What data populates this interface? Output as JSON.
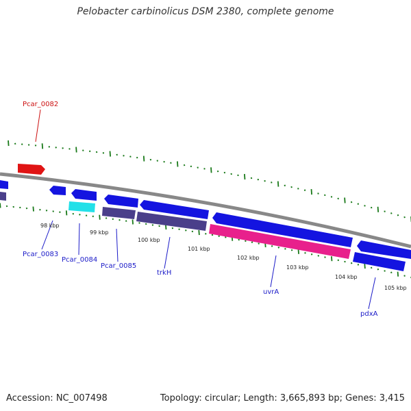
{
  "title": "Pelobacter carbinolicus DSM 2380, complete genome",
  "footer": {
    "accession": "Accession: NC_007498",
    "topology": "Topology: circular; Length: 3,665,893 bp; Genes: 3,415"
  },
  "colors": {
    "backbone": "#888888",
    "tick": "#1a7a1a",
    "gene_blue": "#1414e0",
    "gene_red": "#e01414",
    "gene_cyan": "#22e0e8",
    "gene_slate": "#4a3f8a",
    "gene_pink": "#e8208c",
    "label_blue": "#1a1ac8",
    "label_red": "#cc1111"
  },
  "scale": {
    "ticks": [
      {
        "kbp": 98,
        "label": "98 kbp"
      },
      {
        "kbp": 99,
        "label": "99 kbp"
      },
      {
        "kbp": 100,
        "label": "100 kbp"
      },
      {
        "kbp": 101,
        "label": "101 kbp"
      },
      {
        "kbp": 102,
        "label": "102 kbp"
      },
      {
        "kbp": 103,
        "label": "103 kbp"
      },
      {
        "kbp": 104,
        "label": "104 kbp"
      },
      {
        "kbp": 105,
        "label": "105 kbp"
      }
    ]
  },
  "labels": [
    {
      "text": "Pcar_0082",
      "color": "red"
    },
    {
      "text": "Pcar_0083",
      "color": "blue"
    },
    {
      "text": "Pcar_0084",
      "color": "blue"
    },
    {
      "text": "Pcar_0085",
      "color": "blue"
    },
    {
      "text": "trkH",
      "color": "blue"
    },
    {
      "text": "uvrA",
      "color": "blue"
    },
    {
      "text": "pdxA",
      "color": "blue"
    }
  ]
}
